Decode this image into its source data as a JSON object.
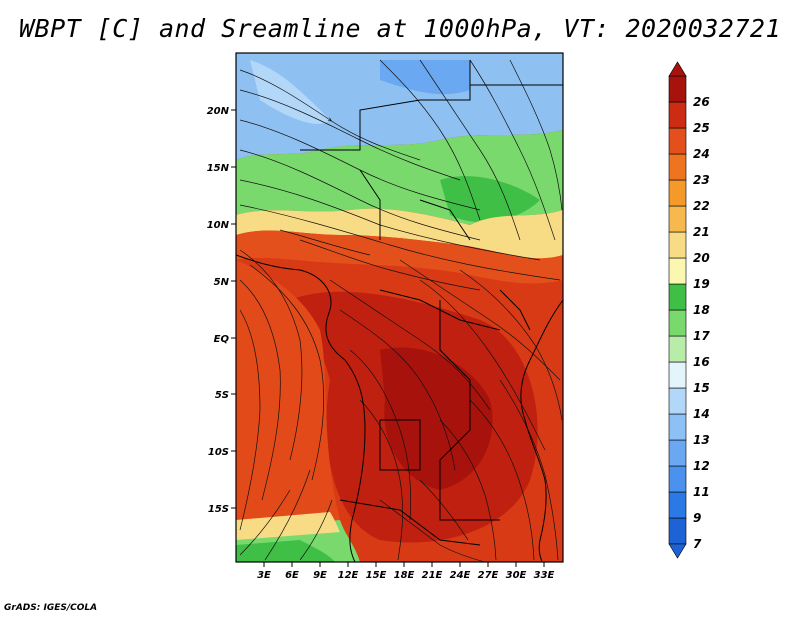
{
  "title": "WBPT [C] and Sreamline at 1000hPa, VT: 2020032721",
  "credit": "GrADS: IGES/COLA",
  "lat_labels": [
    "20N",
    "15N",
    "10N",
    "5N",
    "EQ",
    "5S",
    "10S",
    "15S"
  ],
  "lon_labels": [
    "3E",
    "6E",
    "9E",
    "12E",
    "15E",
    "18E",
    "21E",
    "24E",
    "27E",
    "30E",
    "33E"
  ],
  "colorbar": {
    "labels": [
      "7",
      "9",
      "11",
      "12",
      "13",
      "14",
      "15",
      "16",
      "17",
      "18",
      "19",
      "20",
      "21",
      "22",
      "23",
      "24",
      "25",
      "26"
    ],
    "colors": [
      "#1d63d6",
      "#2b79e5",
      "#4a92ee",
      "#6aa8f2",
      "#8dc0f5",
      "#b3d7f8",
      "#e3f4fb",
      "#b7eda9",
      "#7ad96d",
      "#3fbf45",
      "#fbf7b1",
      "#f8dc85",
      "#f7b84e",
      "#f49a2a",
      "#ef7420",
      "#e4501c",
      "#cc2c14",
      "#a8120c"
    ]
  }
}
